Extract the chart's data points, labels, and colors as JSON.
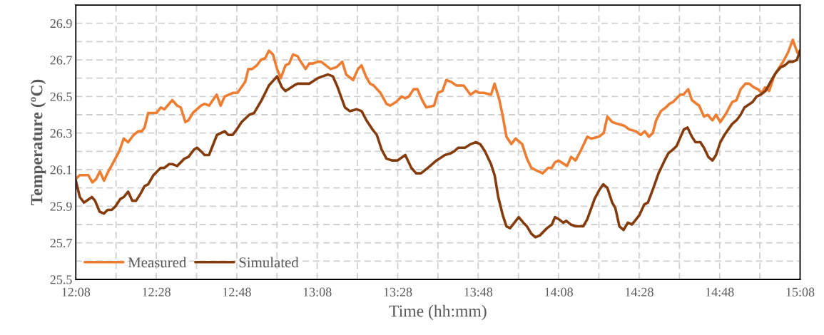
{
  "chart_data": {
    "type": "line",
    "xlabel": "Time (hh:mm)",
    "ylabel": "Temperature (ºC)",
    "xlim": [
      12.1333,
      15.1333
    ],
    "ylim": [
      25.5,
      27.0
    ],
    "xticks": [
      {
        "value": 12.1333,
        "label": "12:08"
      },
      {
        "value": 12.3,
        "label": null
      },
      {
        "value": 12.4667,
        "label": "12:28"
      },
      {
        "value": 12.6333,
        "label": null
      },
      {
        "value": 12.8,
        "label": "12:48"
      },
      {
        "value": 12.9667,
        "label": null
      },
      {
        "value": 13.1333,
        "label": "13:08"
      },
      {
        "value": 13.3,
        "label": null
      },
      {
        "value": 13.4667,
        "label": "13:28"
      },
      {
        "value": 13.6333,
        "label": null
      },
      {
        "value": 13.8,
        "label": "13:48"
      },
      {
        "value": 13.9667,
        "label": null
      },
      {
        "value": 14.1333,
        "label": "14:08"
      },
      {
        "value": 14.3,
        "label": null
      },
      {
        "value": 14.4667,
        "label": "14:28"
      },
      {
        "value": 14.6333,
        "label": null
      },
      {
        "value": 14.8,
        "label": "14:48"
      },
      {
        "value": 14.9667,
        "label": null
      },
      {
        "value": 15.1333,
        "label": "15:08"
      }
    ],
    "yticks": [
      25.5,
      {
        "value": 25.6,
        "label": null
      },
      25.7,
      {
        "value": 25.8,
        "label": null
      },
      25.9,
      {
        "value": 26.0,
        "label": null
      },
      26.1,
      {
        "value": 26.2,
        "label": null
      },
      26.3,
      {
        "value": 26.4,
        "label": null
      },
      26.5,
      {
        "value": 26.6,
        "label": null
      },
      26.7,
      {
        "value": 26.8,
        "label": null
      },
      26.9
    ],
    "grid": true,
    "legend": "bottom left",
    "marker": "none",
    "line_style": "solid",
    "series": [
      {
        "name": "Measured",
        "color": "#ed7d31",
        "x": [
          12.1333,
          12.15,
          12.185,
          12.202,
          12.218,
          12.233,
          12.25,
          12.268,
          12.293,
          12.313,
          12.332,
          12.35,
          12.373,
          12.392,
          12.407,
          12.418,
          12.433,
          12.468,
          12.485,
          12.5,
          12.533,
          12.553,
          12.568,
          12.587,
          12.6,
          12.618,
          12.652,
          12.667,
          12.685,
          12.717,
          12.733,
          12.75,
          12.785,
          12.803,
          12.835,
          12.848,
          12.863,
          12.883,
          12.9,
          12.918,
          12.933,
          12.95,
          12.967,
          12.982,
          13.002,
          13.017,
          13.033,
          13.052,
          13.065,
          13.085,
          13.1,
          13.115,
          13.135,
          13.15,
          13.188,
          13.213,
          13.237,
          13.253,
          13.282,
          13.302,
          13.317,
          13.335,
          13.352,
          13.367,
          13.395,
          13.42,
          13.435,
          13.46,
          13.483,
          13.498,
          13.513,
          13.533,
          13.548,
          13.568,
          13.585,
          13.617,
          13.633,
          13.652,
          13.668,
          13.687,
          13.71,
          13.74,
          13.768,
          13.79,
          13.803,
          13.823,
          13.853,
          13.868,
          13.888,
          13.902,
          13.917,
          13.937,
          13.955,
          13.982,
          14.002,
          14.02,
          14.035,
          14.067,
          14.09,
          14.105,
          14.118,
          14.133,
          14.168,
          14.185,
          14.203,
          14.227,
          14.252,
          14.268,
          14.3,
          14.32,
          14.335,
          14.355,
          14.378,
          14.405,
          14.425,
          14.453,
          14.473,
          14.49,
          14.507,
          14.523,
          14.537,
          14.557,
          14.577,
          14.592,
          14.607,
          14.637,
          14.65,
          14.67,
          14.685,
          14.715,
          14.735,
          14.75,
          14.77,
          14.785,
          14.803,
          14.828,
          14.852,
          14.87,
          14.887,
          14.907,
          14.922,
          14.942,
          14.958,
          14.975,
          14.988,
          15.005,
          15.025,
          15.043,
          15.063,
          15.083,
          15.103,
          15.122,
          15.133
        ],
        "values": [
          26.05,
          26.07,
          26.07,
          26.03,
          26.05,
          26.09,
          26.04,
          26.09,
          26.15,
          26.2,
          26.27,
          26.25,
          26.29,
          26.31,
          26.31,
          26.33,
          26.41,
          26.41,
          26.44,
          26.43,
          26.48,
          26.45,
          26.44,
          26.36,
          26.37,
          26.41,
          26.45,
          26.46,
          26.45,
          26.51,
          26.45,
          26.5,
          26.52,
          26.52,
          26.58,
          26.65,
          26.65,
          26.67,
          26.7,
          26.71,
          26.75,
          26.73,
          26.65,
          26.6,
          26.67,
          26.68,
          26.73,
          26.72,
          26.69,
          26.65,
          26.68,
          26.68,
          26.69,
          26.69,
          26.65,
          26.66,
          26.69,
          26.62,
          26.59,
          26.65,
          26.67,
          26.61,
          26.57,
          26.56,
          26.52,
          26.46,
          26.45,
          26.47,
          26.5,
          26.49,
          26.5,
          26.54,
          26.54,
          26.48,
          26.44,
          26.45,
          26.52,
          26.53,
          26.59,
          26.58,
          26.56,
          26.56,
          26.51,
          26.53,
          26.52,
          26.52,
          26.51,
          26.57,
          26.48,
          26.39,
          26.28,
          26.24,
          26.27,
          26.24,
          26.16,
          26.11,
          26.1,
          26.08,
          26.11,
          26.11,
          26.14,
          26.15,
          26.12,
          26.17,
          26.15,
          26.21,
          26.28,
          26.27,
          26.28,
          26.3,
          26.39,
          26.36,
          26.35,
          26.34,
          26.32,
          26.31,
          26.29,
          26.31,
          26.28,
          26.3,
          26.37,
          26.42,
          26.44,
          26.46,
          26.47,
          26.51,
          26.51,
          26.54,
          26.48,
          26.45,
          26.39,
          26.4,
          26.37,
          26.4,
          26.36,
          26.41,
          26.47,
          26.48,
          26.54,
          26.57,
          26.57,
          26.55,
          26.54,
          26.52,
          26.55,
          26.53,
          26.61,
          26.65,
          26.69,
          26.74,
          26.81,
          26.74,
          26.75
        ]
      },
      {
        "name": "Simulated",
        "color": "#843c0c",
        "x": [
          12.1333,
          12.15,
          12.167,
          12.2,
          12.213,
          12.232,
          12.25,
          12.265,
          12.282,
          12.298,
          12.318,
          12.332,
          12.35,
          12.367,
          12.383,
          12.402,
          12.418,
          12.433,
          12.455,
          12.485,
          12.5,
          12.52,
          12.533,
          12.553,
          12.583,
          12.6,
          12.623,
          12.635,
          12.652,
          12.667,
          12.685,
          12.718,
          12.75,
          12.765,
          12.783,
          12.8,
          12.82,
          12.852,
          12.872,
          12.903,
          12.933,
          12.967,
          12.987,
          13.002,
          13.037,
          13.052,
          13.07,
          13.1,
          13.135,
          13.155,
          13.178,
          13.198,
          13.218,
          13.248,
          13.268,
          13.297,
          13.317,
          13.337,
          13.362,
          13.38,
          13.4,
          13.42,
          13.445,
          13.465,
          13.498,
          13.523,
          13.543,
          13.563,
          13.592,
          13.627,
          13.662,
          13.687,
          13.7,
          13.718,
          13.745,
          13.77,
          13.79,
          13.808,
          13.828,
          13.853,
          13.868,
          13.883,
          13.902,
          13.917,
          13.932,
          13.968,
          13.987,
          14.002,
          14.02,
          14.037,
          14.055,
          14.085,
          14.105,
          14.118,
          14.133,
          14.152,
          14.165,
          14.183,
          14.203,
          14.235,
          14.252,
          14.282,
          14.302,
          14.318,
          14.335,
          14.355,
          14.368,
          14.385,
          14.402,
          14.42,
          14.437,
          14.467,
          14.488,
          14.503,
          14.523,
          14.547,
          14.572,
          14.588,
          14.607,
          14.622,
          14.635,
          14.652,
          14.667,
          14.685,
          14.7,
          14.72,
          14.735,
          14.753,
          14.77,
          14.785,
          14.803,
          14.82,
          14.852,
          14.87,
          14.887,
          14.903,
          14.937,
          14.953,
          14.97,
          14.99,
          15.015,
          15.033,
          15.053,
          15.07,
          15.087,
          15.103,
          15.12,
          15.133
        ],
        "values": [
          26.04,
          25.95,
          25.92,
          25.95,
          25.93,
          25.87,
          25.86,
          25.88,
          25.88,
          25.9,
          25.94,
          25.95,
          25.98,
          25.93,
          25.93,
          25.97,
          26.01,
          26.02,
          26.07,
          26.11,
          26.11,
          26.13,
          26.13,
          26.12,
          26.16,
          26.17,
          26.21,
          26.22,
          26.2,
          26.18,
          26.18,
          26.29,
          26.31,
          26.29,
          26.29,
          26.32,
          26.36,
          26.4,
          26.41,
          26.48,
          26.56,
          26.61,
          26.55,
          26.53,
          26.56,
          26.57,
          26.57,
          26.57,
          26.6,
          26.61,
          26.62,
          26.61,
          26.55,
          26.44,
          26.42,
          26.43,
          26.42,
          26.37,
          26.32,
          26.29,
          26.21,
          26.16,
          26.15,
          26.15,
          26.18,
          26.11,
          26.08,
          26.08,
          26.11,
          26.15,
          26.18,
          26.19,
          26.2,
          26.22,
          26.22,
          26.24,
          26.25,
          26.24,
          26.2,
          26.13,
          26.07,
          25.95,
          25.85,
          25.79,
          25.78,
          25.84,
          25.81,
          25.79,
          25.75,
          25.73,
          25.74,
          25.78,
          25.8,
          25.84,
          25.83,
          25.81,
          25.82,
          25.8,
          25.79,
          25.79,
          25.83,
          25.94,
          25.99,
          26.02,
          26.0,
          25.92,
          25.89,
          25.79,
          25.77,
          25.81,
          25.8,
          25.85,
          25.91,
          25.92,
          25.99,
          26.08,
          26.15,
          26.19,
          26.21,
          26.23,
          26.27,
          26.32,
          26.33,
          26.28,
          26.25,
          26.25,
          26.22,
          26.17,
          26.15,
          26.18,
          26.25,
          26.29,
          26.35,
          26.37,
          26.4,
          26.44,
          26.47,
          26.5,
          26.51,
          26.53,
          26.59,
          26.63,
          26.66,
          26.67,
          26.69,
          26.69,
          26.7,
          26.75
        ]
      }
    ]
  }
}
